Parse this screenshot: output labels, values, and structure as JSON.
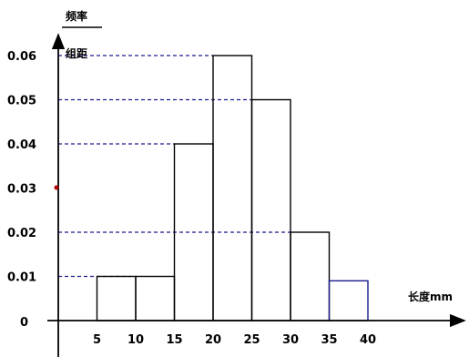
{
  "chart_data": {
    "type": "bar",
    "subtype": "histogram",
    "bins": [
      {
        "from": 5,
        "to": 10,
        "value": 0.01
      },
      {
        "from": 10,
        "to": 15,
        "value": 0.01
      },
      {
        "from": 15,
        "to": 20,
        "value": 0.04
      },
      {
        "from": 20,
        "to": 25,
        "value": 0.06
      },
      {
        "from": 25,
        "to": 30,
        "value": 0.05
      },
      {
        "from": 30,
        "to": 35,
        "value": 0.02
      },
      {
        "from": 35,
        "to": 40,
        "value": 0.009
      }
    ],
    "x_ticks": [
      5,
      10,
      15,
      20,
      25,
      30,
      35,
      40
    ],
    "y_ticks": [
      "0.01",
      "0.02",
      "0.03",
      "0.04",
      "0.05",
      "0.06"
    ],
    "origin_label": "0",
    "ylabel_top": "频率",
    "ylabel_bottom": "组距",
    "xlabel": "长度mm",
    "xlim": [
      0,
      45
    ],
    "ylim": [
      0,
      0.065
    ],
    "grid": false,
    "reference_lines": "dashed lines from y-axis to bar tops",
    "colors": {
      "axis": "#000000",
      "bar_outline": "#000000",
      "last_bar_outline": "#1a1a8c",
      "dashed_line": "#1a1a8c",
      "marker": "#b00000"
    }
  }
}
